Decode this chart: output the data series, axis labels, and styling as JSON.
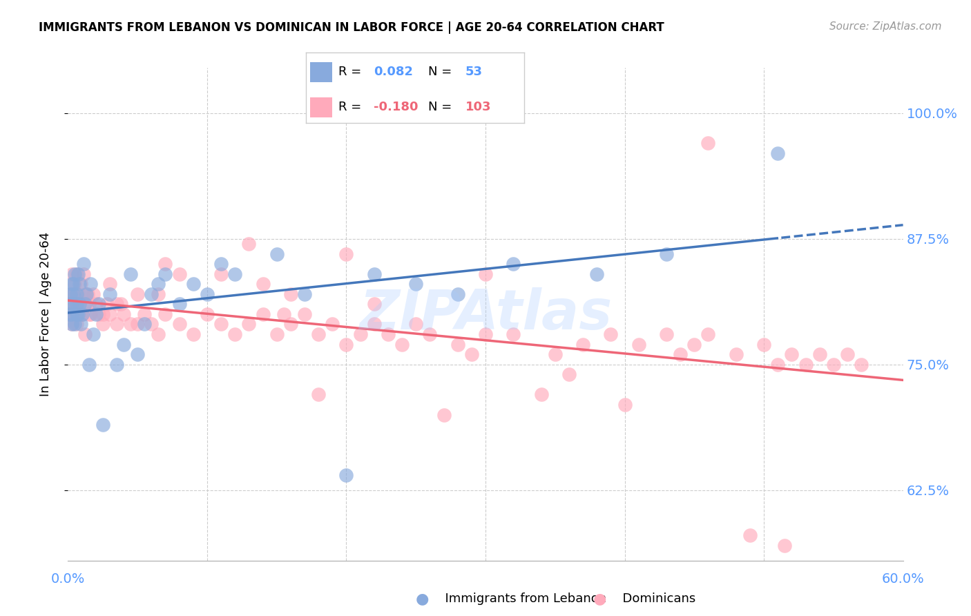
{
  "title": "IMMIGRANTS FROM LEBANON VS DOMINICAN IN LABOR FORCE | AGE 20-64 CORRELATION CHART",
  "source": "Source: ZipAtlas.com",
  "ylabel": "In Labor Force | Age 20-64",
  "yticks": [
    0.625,
    0.75,
    0.875,
    1.0
  ],
  "ytick_labels": [
    "62.5%",
    "75.0%",
    "87.5%",
    "100.0%"
  ],
  "xtick_labels": [
    "0.0%",
    "60.0%"
  ],
  "xlim": [
    0.0,
    0.6
  ],
  "ylim": [
    0.555,
    1.045
  ],
  "r_leb": "0.082",
  "n_leb": "53",
  "r_dom": "-0.180",
  "n_dom": "103",
  "watermark": "ZIPAtlas",
  "blue_fill": "#88AADD",
  "pink_fill": "#FFAABB",
  "trendline_blue": "#4477BB",
  "trendline_pink": "#EE6677",
  "axis_label_color": "#5599FF",
  "lebanon_x": [
    0.001,
    0.002,
    0.002,
    0.003,
    0.003,
    0.003,
    0.003,
    0.004,
    0.004,
    0.005,
    0.005,
    0.006,
    0.006,
    0.006,
    0.007,
    0.007,
    0.008,
    0.008,
    0.009,
    0.01,
    0.011,
    0.012,
    0.013,
    0.015,
    0.016,
    0.018,
    0.02,
    0.022,
    0.025,
    0.03,
    0.035,
    0.04,
    0.045,
    0.05,
    0.055,
    0.06,
    0.065,
    0.07,
    0.08,
    0.09,
    0.1,
    0.11,
    0.12,
    0.15,
    0.17,
    0.2,
    0.22,
    0.25,
    0.28,
    0.32,
    0.38,
    0.43,
    0.51
  ],
  "lebanon_y": [
    0.8,
    0.82,
    0.81,
    0.83,
    0.81,
    0.8,
    0.79,
    0.83,
    0.82,
    0.84,
    0.79,
    0.82,
    0.8,
    0.81,
    0.84,
    0.8,
    0.81,
    0.83,
    0.79,
    0.8,
    0.85,
    0.81,
    0.82,
    0.75,
    0.83,
    0.78,
    0.8,
    0.81,
    0.69,
    0.82,
    0.75,
    0.77,
    0.84,
    0.76,
    0.79,
    0.82,
    0.83,
    0.84,
    0.81,
    0.83,
    0.82,
    0.85,
    0.84,
    0.86,
    0.82,
    0.64,
    0.84,
    0.83,
    0.82,
    0.85,
    0.84,
    0.86,
    0.96
  ],
  "dominican_x": [
    0.001,
    0.002,
    0.002,
    0.003,
    0.003,
    0.004,
    0.004,
    0.005,
    0.005,
    0.006,
    0.006,
    0.007,
    0.007,
    0.008,
    0.009,
    0.01,
    0.011,
    0.012,
    0.013,
    0.014,
    0.015,
    0.016,
    0.018,
    0.02,
    0.022,
    0.025,
    0.028,
    0.03,
    0.035,
    0.038,
    0.04,
    0.045,
    0.05,
    0.055,
    0.06,
    0.065,
    0.07,
    0.08,
    0.09,
    0.1,
    0.11,
    0.12,
    0.13,
    0.14,
    0.15,
    0.16,
    0.17,
    0.18,
    0.19,
    0.2,
    0.21,
    0.22,
    0.23,
    0.24,
    0.25,
    0.26,
    0.28,
    0.3,
    0.32,
    0.35,
    0.37,
    0.39,
    0.41,
    0.43,
    0.45,
    0.46,
    0.48,
    0.5,
    0.51,
    0.52,
    0.53,
    0.54,
    0.55,
    0.56,
    0.57,
    0.03,
    0.08,
    0.13,
    0.2,
    0.3,
    0.07,
    0.11,
    0.14,
    0.16,
    0.22,
    0.05,
    0.065,
    0.035,
    0.025,
    0.015,
    0.008,
    0.012,
    0.18,
    0.27,
    0.34,
    0.4,
    0.155,
    0.29,
    0.36,
    0.44,
    0.46,
    0.49,
    0.515
  ],
  "dominican_y": [
    0.8,
    0.82,
    0.81,
    0.84,
    0.79,
    0.82,
    0.8,
    0.83,
    0.81,
    0.84,
    0.79,
    0.82,
    0.8,
    0.81,
    0.83,
    0.8,
    0.84,
    0.82,
    0.81,
    0.82,
    0.81,
    0.8,
    0.82,
    0.81,
    0.8,
    0.79,
    0.81,
    0.8,
    0.79,
    0.81,
    0.8,
    0.79,
    0.79,
    0.8,
    0.79,
    0.78,
    0.8,
    0.79,
    0.78,
    0.8,
    0.79,
    0.78,
    0.79,
    0.8,
    0.78,
    0.79,
    0.8,
    0.78,
    0.79,
    0.77,
    0.78,
    0.79,
    0.78,
    0.77,
    0.79,
    0.78,
    0.77,
    0.78,
    0.78,
    0.76,
    0.77,
    0.78,
    0.77,
    0.78,
    0.77,
    0.78,
    0.76,
    0.77,
    0.75,
    0.76,
    0.75,
    0.76,
    0.75,
    0.76,
    0.75,
    0.83,
    0.84,
    0.87,
    0.86,
    0.84,
    0.85,
    0.84,
    0.83,
    0.82,
    0.81,
    0.82,
    0.82,
    0.81,
    0.8,
    0.8,
    0.8,
    0.78,
    0.72,
    0.7,
    0.72,
    0.71,
    0.8,
    0.76,
    0.74,
    0.76,
    0.97,
    0.58,
    0.57
  ]
}
